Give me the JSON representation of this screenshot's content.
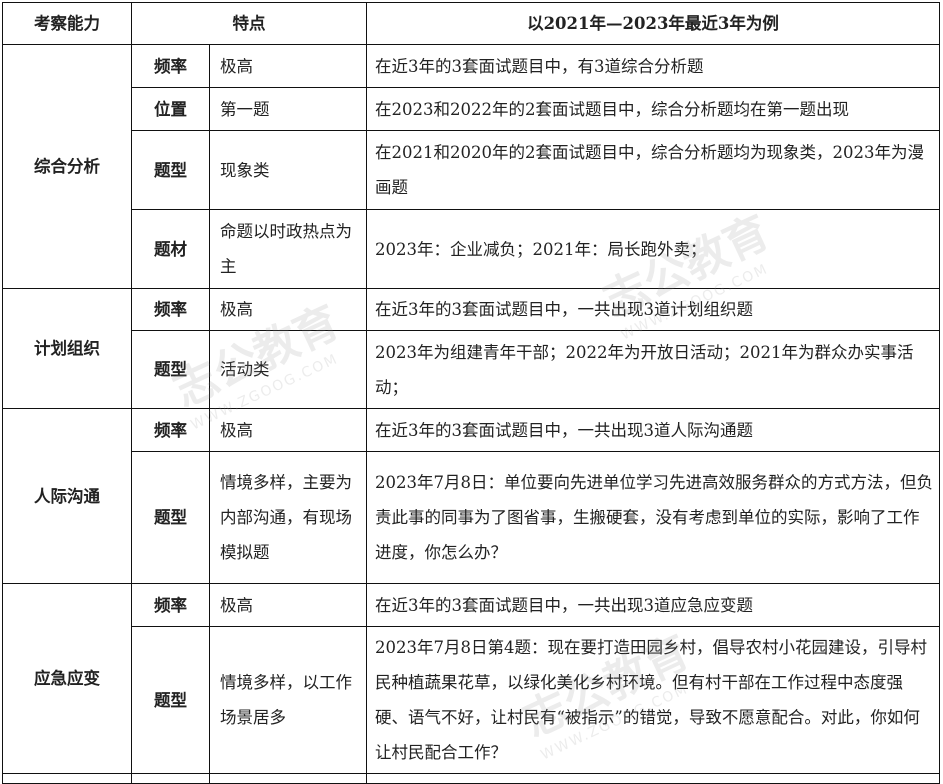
{
  "header": {
    "ability": "考察能力",
    "feature": "特点",
    "example": "以2021年—2023年最近3年为例"
  },
  "sections": [
    {
      "ability": "综合分析",
      "rows": [
        {
          "attr": "频率",
          "feature": "极高",
          "example": "在近3年的3套面试题目中，有3道综合分析题",
          "h": 43
        },
        {
          "attr": "位置",
          "feature": "第一题",
          "example": "在2023和2022年的2套面试题目中，综合分析题均在第一题出现",
          "h": 43
        },
        {
          "attr": "题型",
          "feature": "现象类",
          "example": "在2021和2020年的2套面试题目中，综合分析题均为现象类，2023年为漫画题",
          "h": 79
        },
        {
          "attr": "题材",
          "feature": "命题以时政热点为主",
          "example": "2023年：企业减负；2021年：局长跑外卖；",
          "h": 79
        }
      ]
    },
    {
      "ability": "计划组织",
      "rows": [
        {
          "attr": "频率",
          "feature": "极高",
          "example": "在近3年的3套面试题目中，一共出现3道计划组织题",
          "h": 42
        },
        {
          "attr": "题型",
          "feature": "活动类",
          "example": "2023年为组建青年干部；2022年为开放日活动；2021年为群众办实事活动；",
          "h": 78
        }
      ]
    },
    {
      "ability": "人际沟通",
      "rows": [
        {
          "attr": "频率",
          "feature": "极高",
          "example": "在近3年的3套面试题目中，一共出现3道人际沟通题",
          "h": 43
        },
        {
          "attr": "题型",
          "feature": "情境多样，主要为内部沟通，有现场模拟题",
          "example": "2023年7月8日：单位要向先进单位学习先进高效服务群众的方式方法，但负责此事的同事为了图省事，生搬硬套，没有考虑到单位的实际，影响了工作进度，你怎么办？",
          "h": 132
        }
      ]
    },
    {
      "ability": "应急应变",
      "rows": [
        {
          "attr": "频率",
          "feature": "极高",
          "example": "在近3年的3套面试题目中，一共出现3道应急应变题",
          "h": 43
        },
        {
          "attr": "题型",
          "feature": "情境多样，以工作场景居多",
          "example": "2023年7月8日第4题：现在要打造田园乡村，倡导农村小花园建设，引导村民种植蔬果花草，以绿化美化乡村环境。但有村干部在工作过程中态度强硬、语气不好，让村民有“被指示”的错觉，导致不愿意配合。对此，你如何让村民配合工作？",
          "h": 147
        }
      ]
    }
  ],
  "watermark": {
    "brand": "志公教育",
    "url": "WWW.ZGOOG.COM"
  }
}
